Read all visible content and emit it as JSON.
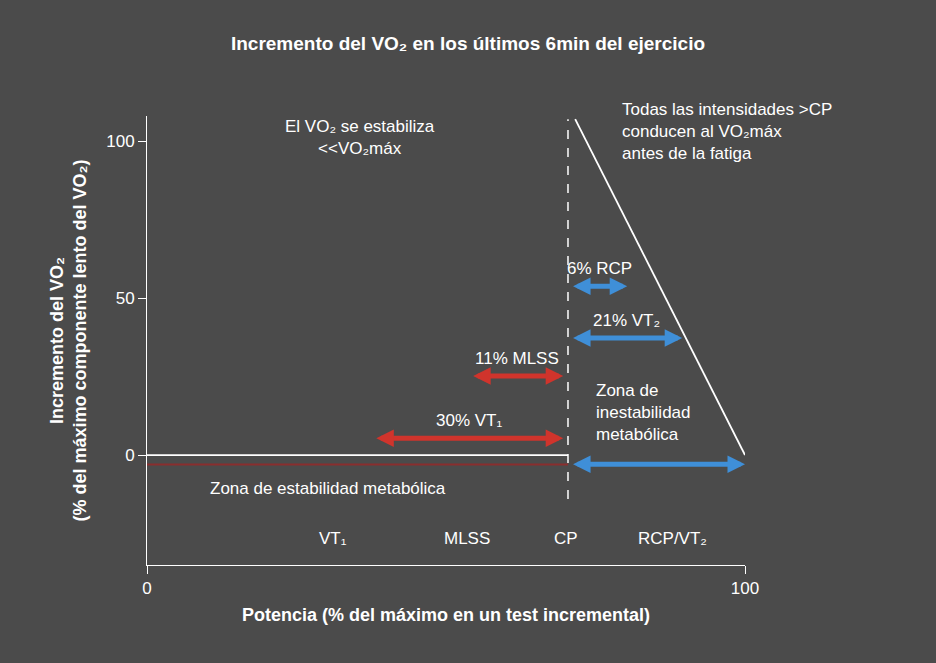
{
  "chart_data": {
    "type": "line",
    "title": "Incremento del VO₂ en los últimos 6min del ejercicio",
    "x_label": "Potencia (% del máximo en un test incremental)",
    "y_label": "Incremento del VO₂\n(% del máximo componente lento del VO₂)",
    "xlim": [
      0,
      100
    ],
    "xticks": [
      0,
      100
    ],
    "ylim": [
      -35,
      108
    ],
    "yticks": [
      0,
      50,
      100
    ],
    "grid": false,
    "lines": [
      {
        "x": [
          0,
          70.4
        ],
        "y": [
          0,
          0
        ],
        "color": "#ffffff",
        "line_style": "solid"
      },
      {
        "x": [
          0,
          70.4
        ],
        "y": [
          -3,
          -3
        ],
        "color": "#8a2e2e",
        "line_style": "solid"
      },
      {
        "x": [
          70.4,
          70.4
        ],
        "y": [
          -14,
          107
        ],
        "color": "#ffffff",
        "line_style": "dash"
      },
      {
        "x": [
          71.6,
          100
        ],
        "y": [
          107,
          0
        ],
        "color": "#ffffff",
        "line_style": "solid"
      }
    ],
    "arrows": [
      {
        "label": "30% VT₁",
        "start": 38.1,
        "end": 69.6,
        "y": 5.4,
        "color": "#d0342c"
      },
      {
        "label": "11% MLSS",
        "start": 54.3,
        "end": 69.6,
        "y": 25.2,
        "color": "#d0342c"
      },
      {
        "label": "6% RCP",
        "start": 71.0,
        "end": 80.3,
        "y": 53.8,
        "color": "#3f8fd8"
      },
      {
        "label": "21% VT₂",
        "start": 71.0,
        "end": 89.5,
        "y": 37.3,
        "color": "#3f8fd8"
      },
      {
        "start": 71.0,
        "end": 100,
        "y": -2.9,
        "color": "#3f8fd8"
      }
    ],
    "annotations": [
      {
        "text": "El VO₂ se estabiliza\n<<VO₂máx",
        "x": 35.6,
        "y": 101,
        "align": "center"
      },
      {
        "text": "Todas las intensidades >CP\nconducen al VO₂máx\nantes de la fatiga",
        "x": 79.1,
        "y": 103,
        "align": "left"
      },
      {
        "text": "Zona de\ninestabilidad\nmetabólica",
        "x": 74.7,
        "y": 13.7,
        "align": "left"
      },
      {
        "text": "Zona de estabilidad metabólica",
        "x": 10.2,
        "y": -10.5,
        "align": "left"
      },
      {
        "text": "VT₁",
        "x": 31.1,
        "y": -26.4,
        "align": "center"
      },
      {
        "text": "MLSS",
        "x": 53.5,
        "y": -26.4,
        "align": "center"
      },
      {
        "text": "CP",
        "x": 70.1,
        "y": -26.4,
        "align": "center"
      },
      {
        "text": "RCP/VT₂",
        "x": 87.8,
        "y": -26.4,
        "align": "center"
      }
    ]
  }
}
